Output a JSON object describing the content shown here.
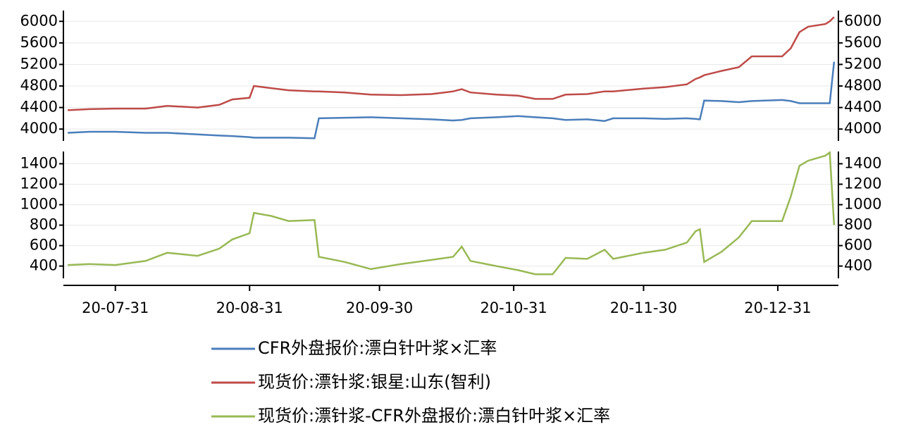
{
  "chart_data": [
    {
      "type": "line",
      "x": [
        "20-07-20",
        "20-07-25",
        "20-07-31",
        "20-08-07",
        "20-08-12",
        "20-08-19",
        "20-08-24",
        "20-08-27",
        "20-08-31",
        "20-09-01",
        "20-09-05",
        "20-09-09",
        "20-09-15",
        "20-09-16",
        "20-09-22",
        "20-09-28",
        "20-10-05",
        "20-10-12",
        "20-10-17",
        "20-10-19",
        "20-10-21",
        "20-10-27",
        "20-11-01",
        "20-11-05",
        "20-11-09",
        "20-11-12",
        "20-11-17",
        "20-11-21",
        "20-11-23",
        "20-11-30",
        "20-12-05",
        "20-12-10",
        "20-12-12",
        "20-12-13",
        "20-12-14",
        "20-12-18",
        "20-12-22",
        "20-12-25",
        "21-01-01",
        "21-01-03",
        "21-01-05",
        "21-01-07",
        "21-01-11",
        "21-01-12",
        "21-01-13"
      ],
      "xlim": [
        "20-07-19",
        "21-01-14"
      ],
      "ylim": [
        3780,
        6200
      ],
      "yticks": [
        4000,
        4400,
        4800,
        5200,
        5600,
        6000
      ],
      "grid": true,
      "series": [
        {
          "name": "CFR外盘报价:漂白针叶浆×汇率",
          "color": "#4a7ebb",
          "values": [
            3930,
            3950,
            3950,
            3930,
            3930,
            3900,
            3880,
            3870,
            3850,
            3840,
            3840,
            3840,
            3830,
            4200,
            4210,
            4220,
            4200,
            4180,
            4160,
            4170,
            4200,
            4220,
            4240,
            4220,
            4200,
            4170,
            4180,
            4150,
            4200,
            4200,
            4190,
            4200,
            4190,
            4180,
            4530,
            4520,
            4500,
            4520,
            4540,
            4520,
            4480,
            4480,
            4480,
            4480,
            5250
          ]
        },
        {
          "name": "现货价:漂针浆:银星:山东(智利)",
          "color": "#be4b48",
          "values": [
            4350,
            4370,
            4380,
            4380,
            4430,
            4400,
            4450,
            4550,
            4580,
            4800,
            4760,
            4720,
            4700,
            4700,
            4680,
            4640,
            4630,
            4650,
            4700,
            4740,
            4680,
            4640,
            4620,
            4560,
            4560,
            4640,
            4650,
            4700,
            4700,
            4750,
            4780,
            4830,
            4930,
            4960,
            5000,
            5080,
            5150,
            5350,
            5350,
            5500,
            5800,
            5900,
            5950,
            6000,
            6080
          ]
        }
      ]
    },
    {
      "type": "line",
      "x": [
        "20-07-20",
        "20-07-25",
        "20-07-31",
        "20-08-07",
        "20-08-12",
        "20-08-19",
        "20-08-24",
        "20-08-27",
        "20-08-31",
        "20-09-01",
        "20-09-05",
        "20-09-09",
        "20-09-15",
        "20-09-16",
        "20-09-22",
        "20-09-28",
        "20-10-05",
        "20-10-12",
        "20-10-17",
        "20-10-19",
        "20-10-21",
        "20-10-27",
        "20-11-01",
        "20-11-05",
        "20-11-09",
        "20-11-12",
        "20-11-17",
        "20-11-21",
        "20-11-23",
        "20-11-30",
        "20-12-05",
        "20-12-10",
        "20-12-12",
        "20-12-13",
        "20-12-14",
        "20-12-18",
        "20-12-22",
        "20-12-25",
        "21-01-01",
        "21-01-03",
        "21-01-05",
        "21-01-07",
        "21-01-11",
        "21-01-12",
        "21-01-13"
      ],
      "xlim": [
        "20-07-19",
        "21-01-14"
      ],
      "xticks": [
        "20-07-31",
        "20-08-31",
        "20-09-30",
        "20-10-31",
        "20-11-30",
        "20-12-31"
      ],
      "ylim": [
        280,
        1520
      ],
      "yticks": [
        400,
        600,
        800,
        1000,
        1200,
        1400
      ],
      "grid": true,
      "series": [
        {
          "name": "现货价:漂针浆-CFR外盘报价:漂白针叶浆×汇率",
          "color": "#98b954",
          "values": [
            410,
            420,
            410,
            450,
            530,
            500,
            570,
            660,
            720,
            920,
            890,
            840,
            850,
            490,
            440,
            370,
            420,
            460,
            490,
            590,
            450,
            400,
            360,
            320,
            320,
            480,
            470,
            560,
            470,
            530,
            560,
            630,
            740,
            760,
            440,
            540,
            680,
            840,
            840,
            1080,
            1380,
            1430,
            1480,
            1510,
            800
          ]
        }
      ]
    }
  ]
}
